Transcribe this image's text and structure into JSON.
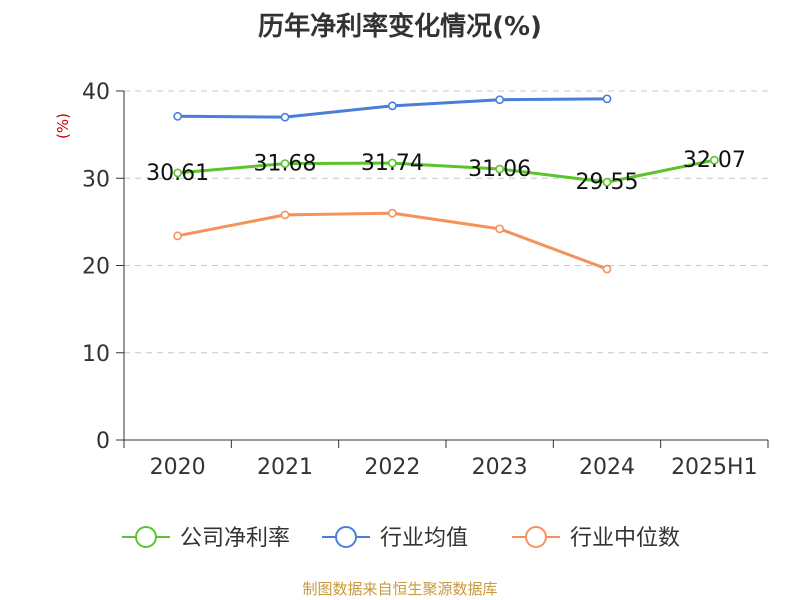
{
  "chart_data": {
    "type": "line",
    "title": "历年净利率变化情况(%)",
    "ylabel": "(%)",
    "xlabel": "",
    "categories": [
      "2020",
      "2021",
      "2022",
      "2023",
      "2024",
      "2025H1"
    ],
    "ylim": [
      0,
      40
    ],
    "yticks": [
      0,
      10,
      20,
      30,
      40
    ],
    "grid": true,
    "legend_position": "bottom",
    "series": [
      {
        "name": "公司净利率",
        "color": "#5bc42a",
        "values": [
          30.61,
          31.68,
          31.74,
          31.06,
          29.55,
          32.07
        ],
        "labels": [
          "30.61",
          "31.68",
          "31.74",
          "31.06",
          "29.55",
          "32.07"
        ]
      },
      {
        "name": "行业均值",
        "color": "#4a7fd9",
        "values": [
          37.1,
          37.0,
          38.3,
          39.0,
          39.1,
          null
        ]
      },
      {
        "name": "行业中位数",
        "color": "#f5925a",
        "values": [
          23.4,
          25.8,
          26.0,
          24.2,
          19.6,
          null
        ]
      }
    ],
    "source": "制图数据来自恒生聚源数据库"
  }
}
